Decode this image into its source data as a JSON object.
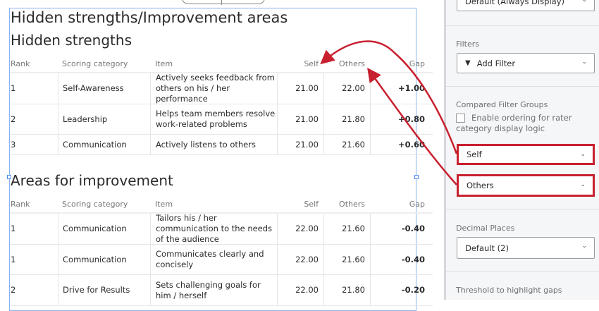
{
  "report": {
    "title": "Hidden strengths/Improvement areas",
    "columns": [
      "Rank",
      "Scoring category",
      "Item",
      "Self",
      "Others",
      "Gap"
    ],
    "hidden_strengths": {
      "heading": "Hidden strengths",
      "rows": [
        {
          "rank": "1",
          "category": "Self-Awareness",
          "item": "Actively seeks feedback from others on his / her performance",
          "self": "21.00",
          "others": "22.00",
          "gap": "+1.00"
        },
        {
          "rank": "2",
          "category": "Leadership",
          "item": "Helps team members resolve work-related problems",
          "self": "21.00",
          "others": "21.80",
          "gap": "+0.80"
        },
        {
          "rank": "3",
          "category": "Communication",
          "item": "Actively listens to others",
          "self": "21.00",
          "others": "21.60",
          "gap": "+0.60"
        }
      ]
    },
    "areas_for_improvement": {
      "heading": "Areas for improvement",
      "rows": [
        {
          "rank": "1",
          "category": "Communication",
          "item": "Tailors his / her communication to the needs of the audience",
          "self": "22.00",
          "others": "21.60",
          "gap": "-0.40"
        },
        {
          "rank": "1",
          "category": "Communication",
          "item": "Communicates clearly and concisely",
          "self": "22.00",
          "others": "21.60",
          "gap": "-0.40"
        },
        {
          "rank": "2",
          "category": "Drive for Results",
          "item": "Sets challenging goals for him / herself",
          "self": "22.00",
          "others": "21.80",
          "gap": "-0.20"
        }
      ]
    }
  },
  "panel": {
    "display_select": "Default (Always Display)",
    "filters_label": "Filters",
    "add_filter": "Add Filter",
    "compared_label": "Compared Filter Groups",
    "ordering_checkbox": "Enable ordering for rater category display logic",
    "ordering_checked": false,
    "group1": "Self",
    "group2": "Others",
    "decimal_label": "Decimal Places",
    "decimal_value": "Default (2)",
    "threshold_label": "Threshold to highlight gaps"
  },
  "colors": {
    "highlight": "#c8202f",
    "selection": "#8ab4f0"
  }
}
